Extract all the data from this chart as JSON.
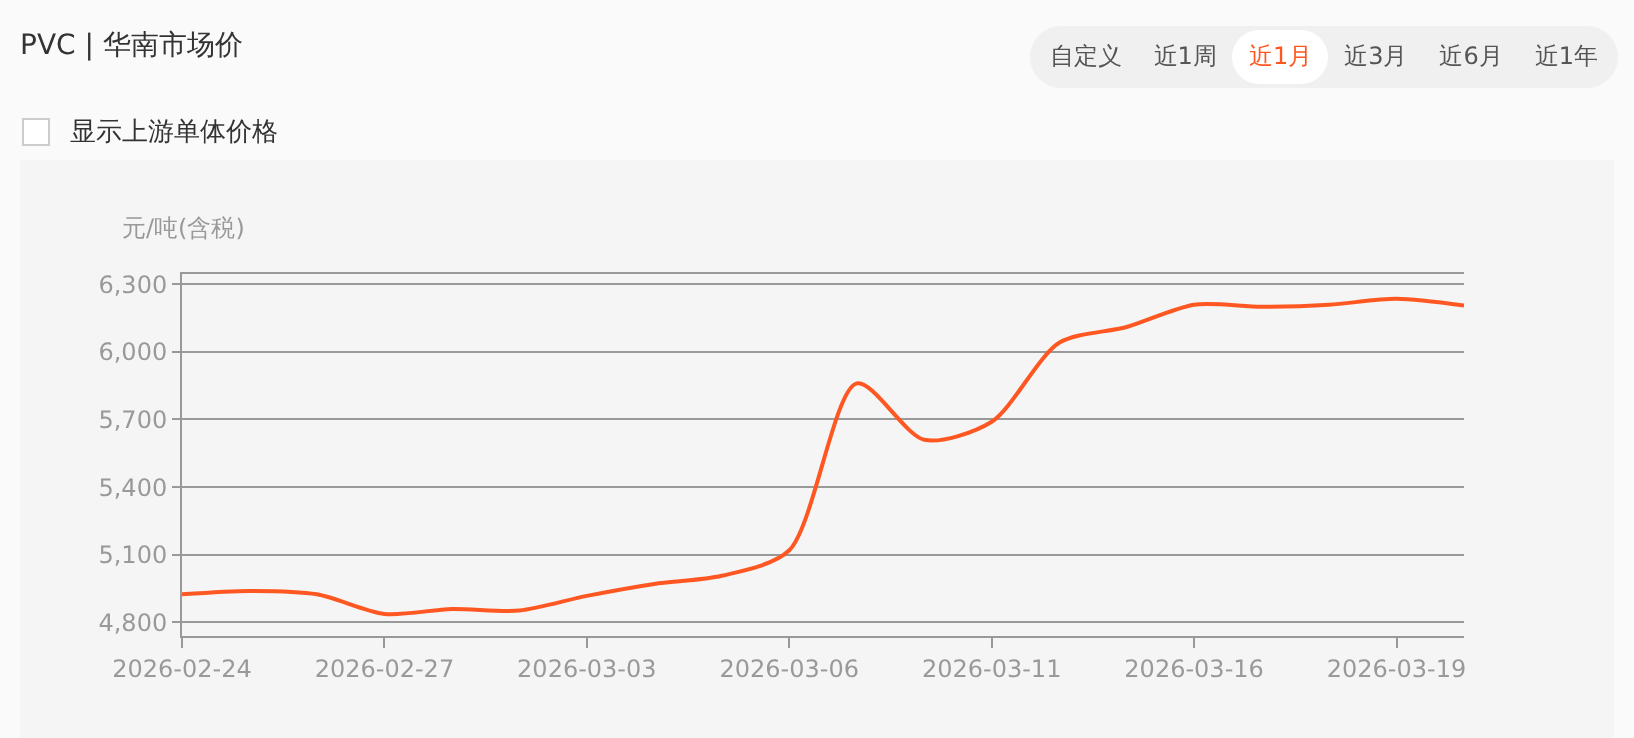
{
  "chart_data": {
    "type": "line",
    "title": "PVC | 华南市场价",
    "ylabel": "元/吨(含税)",
    "annotations": [
      "自定义",
      "近1周",
      "近1月",
      "近3月",
      "近6月",
      "近1年",
      "显示上游单体价格"
    ],
    "categories": [
      "2026-02-24",
      null,
      null,
      "2026-02-27",
      null,
      null,
      "2026-03-03",
      null,
      null,
      "2026-03-06",
      null,
      null,
      "2026-03-11",
      null,
      null,
      "2026-03-16",
      null,
      null,
      "2026-03-19",
      null
    ],
    "series": [
      {
        "color": "#ff5722",
        "values": [
          4925,
          4940,
          4925,
          4838,
          4860,
          4853,
          4918,
          4971,
          5007,
          5120,
          5860,
          5610,
          5690,
          6040,
          6110,
          6209,
          6200,
          6209,
          6235,
          6205
        ]
      }
    ],
    "ylim": [
      4740,
      6345
    ],
    "yticks": [
      {
        "value": 4800,
        "label": "4,800"
      },
      {
        "value": 5100,
        "label": "5,100"
      },
      {
        "value": 5400,
        "label": "5,400"
      },
      {
        "value": 5700,
        "label": "5,700"
      },
      {
        "value": 6000,
        "label": "6,000"
      },
      {
        "value": 6300,
        "label": "6,300"
      }
    ],
    "grid": "y",
    "legend": false,
    "marker": "none",
    "line_style": "solid"
  }
}
